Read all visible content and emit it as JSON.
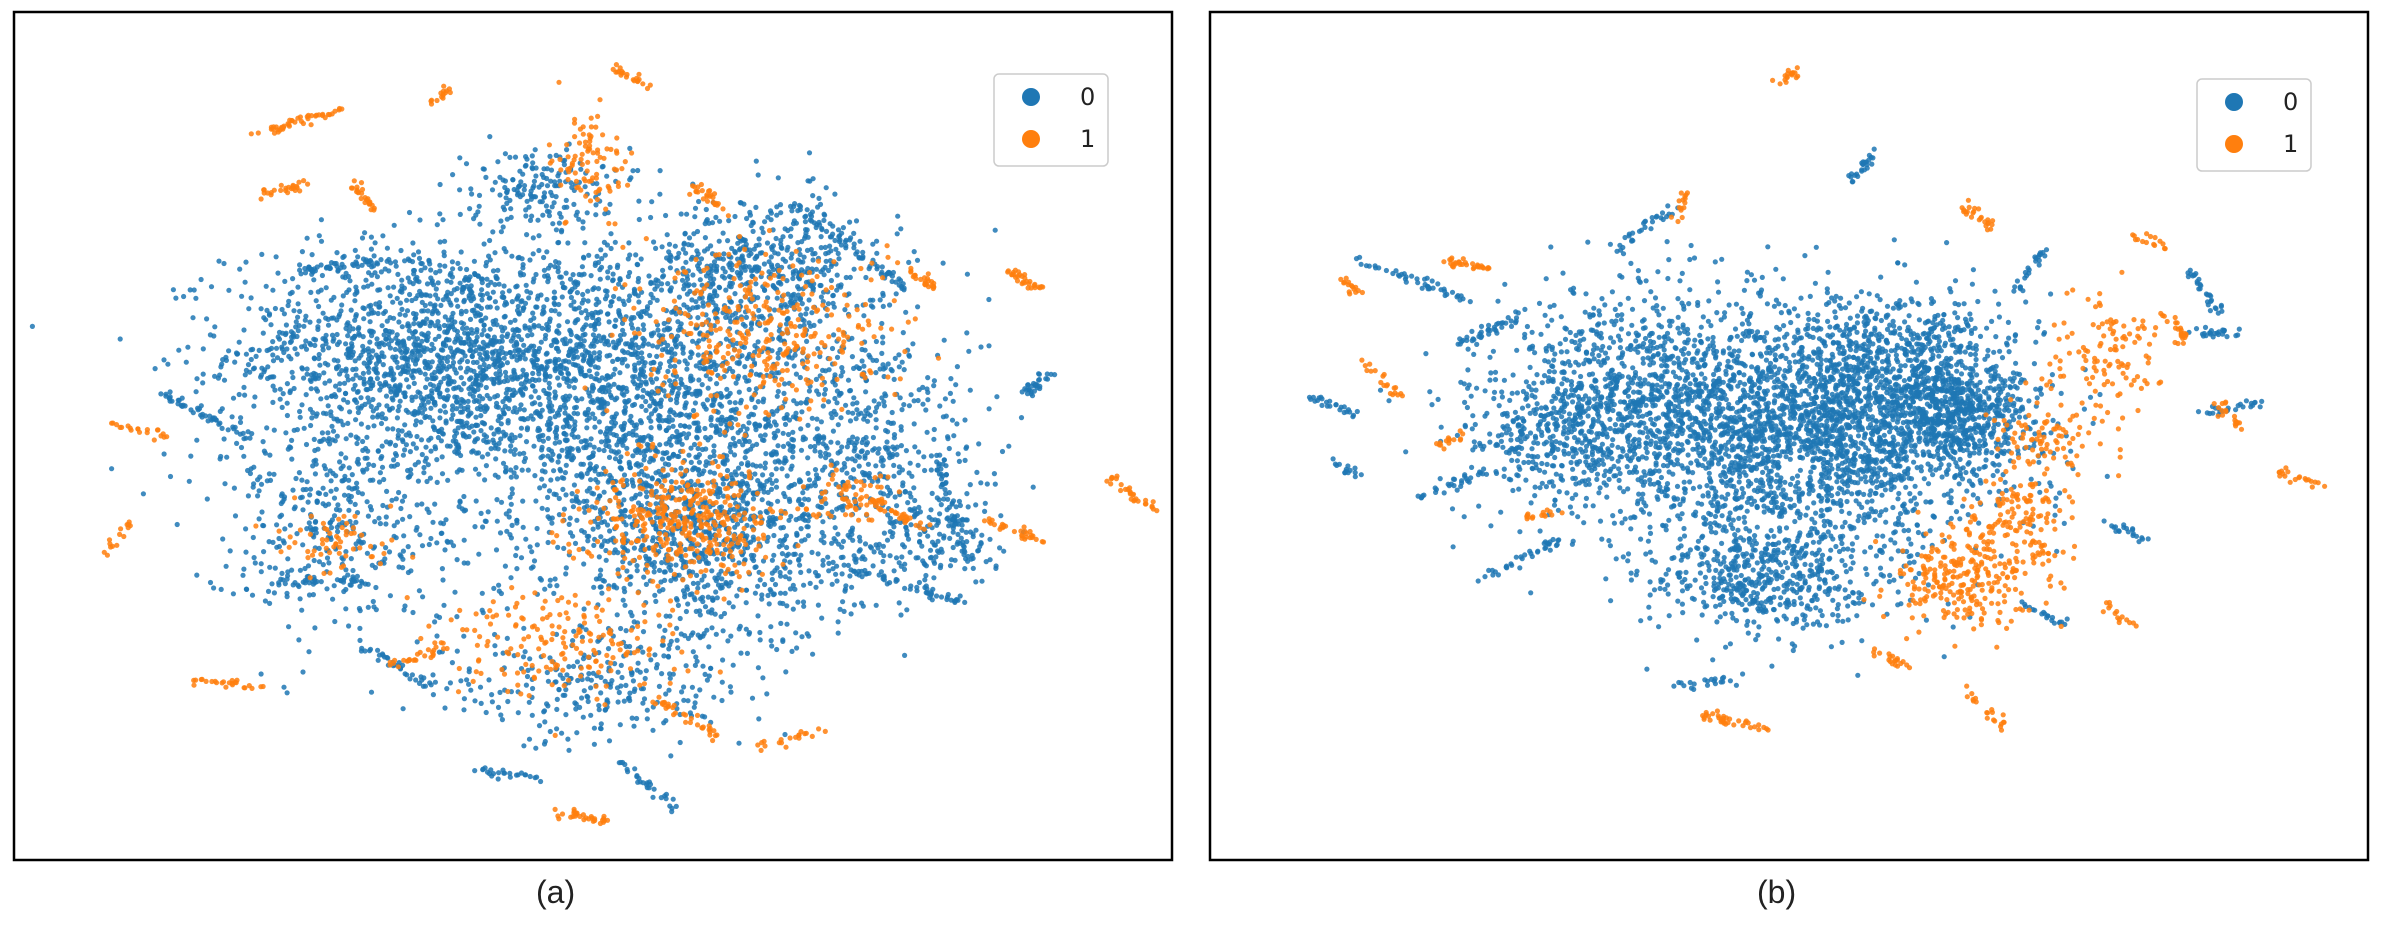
{
  "chart_data": [
    {
      "type": "scatter",
      "caption": "(a)",
      "legend": {
        "entries": [
          "0",
          "1"
        ],
        "placement": "top-right"
      },
      "colors": {
        "0": "#1f77b4",
        "1": "#ff7f0e"
      },
      "xlim": [
        -100,
        100
      ],
      "ylim": [
        -100,
        100
      ],
      "grid": false,
      "series": [
        {
          "name": "0",
          "color": "#1f77b4",
          "clusters": [
            {
              "cx": -30,
              "cy": 20,
              "sx": 28,
              "sy": 22,
              "n": 1500
            },
            {
              "cx": 5,
              "cy": 10,
              "sx": 30,
              "sy": 30,
              "n": 1700
            },
            {
              "cx": 20,
              "cy": -25,
              "sx": 22,
              "sy": 22,
              "n": 900
            },
            {
              "cx": 30,
              "cy": 40,
              "sx": 18,
              "sy": 14,
              "n": 500
            },
            {
              "cx": 45,
              "cy": 0,
              "sx": 20,
              "sy": 25,
              "n": 500
            },
            {
              "cx": -10,
              "cy": 60,
              "sx": 10,
              "sy": 8,
              "n": 160
            },
            {
              "cx": -45,
              "cy": -20,
              "sx": 20,
              "sy": 22,
              "n": 400
            },
            {
              "cx": 0,
              "cy": -60,
              "sx": 22,
              "sy": 12,
              "n": 260
            },
            {
              "cx": 60,
              "cy": -25,
              "sx": 12,
              "sy": 10,
              "n": 160
            }
          ],
          "segments": [
            {
              "x1": 35,
              "y1": 55,
              "x2": 55,
              "y2": 35,
              "n": 60
            },
            {
              "x1": 60,
              "y1": -5,
              "x2": 65,
              "y2": -30,
              "n": 55
            },
            {
              "x1": 40,
              "y1": -30,
              "x2": 65,
              "y2": -40,
              "n": 55
            },
            {
              "x1": -50,
              "y1": 40,
              "x2": -35,
              "y2": 42,
              "n": 45
            },
            {
              "x1": -75,
              "y1": 10,
              "x2": -60,
              "y2": 0,
              "n": 45
            },
            {
              "x1": 75,
              "y1": 10,
              "x2": 80,
              "y2": 15,
              "n": 30
            },
            {
              "x1": -40,
              "y1": -50,
              "x2": -28,
              "y2": -60,
              "n": 35
            },
            {
              "x1": -55,
              "y1": -35,
              "x2": -40,
              "y2": -35,
              "n": 35
            },
            {
              "x1": 5,
              "y1": -78,
              "x2": 15,
              "y2": -90,
              "n": 30
            },
            {
              "x1": -20,
              "y1": -80,
              "x2": -10,
              "y2": -82,
              "n": 25
            }
          ]
        },
        {
          "name": "1",
          "color": "#ff7f0e",
          "clusters": [
            {
              "cx": 15,
              "cy": -20,
              "sx": 14,
              "sy": 12,
              "n": 380
            },
            {
              "cx": 30,
              "cy": 25,
              "sx": 18,
              "sy": 16,
              "n": 330
            },
            {
              "cx": -5,
              "cy": -50,
              "sx": 18,
              "sy": 12,
              "n": 180
            },
            {
              "cx": 0,
              "cy": 65,
              "sx": 6,
              "sy": 10,
              "n": 90
            },
            {
              "cx": 45,
              "cy": -15,
              "sx": 6,
              "sy": 6,
              "n": 60
            },
            {
              "cx": -45,
              "cy": -25,
              "sx": 8,
              "sy": 6,
              "n": 60
            }
          ],
          "segments": [
            {
              "x1": -60,
              "y1": 72,
              "x2": -44,
              "y2": 78,
              "n": 45
            },
            {
              "x1": -58,
              "y1": 58,
              "x2": -50,
              "y2": 60,
              "n": 25
            },
            {
              "x1": -42,
              "y1": 60,
              "x2": -38,
              "y2": 54,
              "n": 25
            },
            {
              "x1": -28,
              "y1": 80,
              "x2": -25,
              "y2": 83,
              "n": 15
            },
            {
              "x1": 4,
              "y1": 88,
              "x2": 10,
              "y2": 84,
              "n": 22
            },
            {
              "x1": 18,
              "y1": 60,
              "x2": 22,
              "y2": 55,
              "n": 25
            },
            {
              "x1": 55,
              "y1": 40,
              "x2": 60,
              "y2": 35,
              "n": 25
            },
            {
              "x1": 72,
              "y1": 40,
              "x2": 78,
              "y2": 35,
              "n": 30
            },
            {
              "x1": 90,
              "y1": -10,
              "x2": 98,
              "y2": -18,
              "n": 30
            },
            {
              "x1": 68,
              "y1": -20,
              "x2": 78,
              "y2": -25,
              "n": 30
            },
            {
              "x1": 48,
              "y1": -15,
              "x2": 58,
              "y2": -22,
              "n": 35
            },
            {
              "x1": -85,
              "y1": -28,
              "x2": -80,
              "y2": -20,
              "n": 15
            },
            {
              "x1": -70,
              "y1": -58,
              "x2": -58,
              "y2": -60,
              "n": 25
            },
            {
              "x1": -35,
              "y1": -55,
              "x2": -25,
              "y2": -50,
              "n": 25
            },
            {
              "x1": 10,
              "y1": -62,
              "x2": 22,
              "y2": -72,
              "n": 35
            },
            {
              "x1": -6,
              "y1": -90,
              "x2": 2,
              "y2": -92,
              "n": 30
            },
            {
              "x1": 28,
              "y1": -75,
              "x2": 40,
              "y2": -70,
              "n": 20
            },
            {
              "x1": -85,
              "y1": 3,
              "x2": -75,
              "y2": 0,
              "n": 20
            }
          ]
        }
      ]
    },
    {
      "type": "scatter",
      "caption": "(b)",
      "legend": {
        "entries": [
          "0",
          "1"
        ],
        "placement": "top-right"
      },
      "colors": {
        "0": "#1f77b4",
        "1": "#ff7f0e"
      },
      "xlim": [
        -100,
        100
      ],
      "ylim": [
        -100,
        100
      ],
      "grid": false,
      "series": [
        {
          "name": "0",
          "color": "#1f77b4",
          "clusters": [
            {
              "cx": 5,
              "cy": 0,
              "sx": 28,
              "sy": 24,
              "n": 2200
            },
            {
              "cx": -25,
              "cy": 10,
              "sx": 22,
              "sy": 22,
              "n": 900
            },
            {
              "cx": 20,
              "cy": 15,
              "sx": 18,
              "sy": 16,
              "n": 700
            },
            {
              "cx": -5,
              "cy": -35,
              "sx": 18,
              "sy": 12,
              "n": 500
            },
            {
              "cx": -40,
              "cy": 0,
              "sx": 14,
              "sy": 14,
              "n": 350
            },
            {
              "cx": 30,
              "cy": 5,
              "sx": 10,
              "sy": 10,
              "n": 400
            }
          ],
          "segments": [
            {
              "x1": -75,
              "y1": 42,
              "x2": -55,
              "y2": 32,
              "n": 45
            },
            {
              "x1": -58,
              "y1": 22,
              "x2": -48,
              "y2": 28,
              "n": 35
            },
            {
              "x1": 70,
              "y1": 40,
              "x2": 75,
              "y2": 30,
              "n": 30
            },
            {
              "x1": 70,
              "y1": 25,
              "x2": 78,
              "y2": 25,
              "n": 25
            },
            {
              "x1": 72,
              "y1": 5,
              "x2": 82,
              "y2": 8,
              "n": 25
            },
            {
              "x1": -85,
              "y1": 10,
              "x2": -75,
              "y2": 5,
              "n": 25
            },
            {
              "x1": -65,
              "y1": -15,
              "x2": -52,
              "y2": -8,
              "n": 30
            },
            {
              "x1": -55,
              "y1": -35,
              "x2": -40,
              "y2": -25,
              "n": 35
            },
            {
              "x1": -30,
              "y1": 45,
              "x2": -20,
              "y2": 55,
              "n": 30
            },
            {
              "x1": 10,
              "y1": 60,
              "x2": 15,
              "y2": 68,
              "n": 25
            },
            {
              "x1": 40,
              "y1": 35,
              "x2": 45,
              "y2": 45,
              "n": 25
            },
            {
              "x1": 40,
              "y1": -40,
              "x2": 48,
              "y2": -45,
              "n": 20
            },
            {
              "x1": 55,
              "y1": -20,
              "x2": 62,
              "y2": -25,
              "n": 20
            },
            {
              "x1": -20,
              "y1": -60,
              "x2": -10,
              "y2": -58,
              "n": 20
            },
            {
              "x1": -80,
              "y1": -5,
              "x2": -75,
              "y2": -10,
              "n": 15
            }
          ]
        },
        {
          "name": "1",
          "color": "#ff7f0e",
          "clusters": [
            {
              "cx": 30,
              "cy": -35,
              "sx": 10,
              "sy": 10,
              "n": 250
            },
            {
              "cx": 40,
              "cy": -20,
              "sx": 8,
              "sy": 10,
              "n": 140
            },
            {
              "cx": 55,
              "cy": 20,
              "sx": 8,
              "sy": 10,
              "n": 110
            },
            {
              "cx": 45,
              "cy": 0,
              "sx": 8,
              "sy": 8,
              "n": 90
            }
          ],
          "segments": [
            {
              "x1": -60,
              "y1": 42,
              "x2": -52,
              "y2": 40,
              "n": 30
            },
            {
              "x1": -78,
              "y1": 38,
              "x2": -75,
              "y2": 34,
              "n": 15
            },
            {
              "x1": -75,
              "y1": 18,
              "x2": -68,
              "y2": 10,
              "n": 20
            },
            {
              "x1": -62,
              "y1": -3,
              "x2": -56,
              "y2": 1,
              "n": 15
            },
            {
              "x1": -48,
              "y1": -20,
              "x2": -40,
              "y2": -18,
              "n": 15
            },
            {
              "x1": -15,
              "y1": -67,
              "x2": -4,
              "y2": -70,
              "n": 35
            },
            {
              "x1": -20,
              "y1": 52,
              "x2": -18,
              "y2": 58,
              "n": 15
            },
            {
              "x1": -2,
              "y1": 85,
              "x2": 2,
              "y2": 87,
              "n": 18
            },
            {
              "x1": 30,
              "y1": 55,
              "x2": 36,
              "y2": 50,
              "n": 25
            },
            {
              "x1": 60,
              "y1": 48,
              "x2": 66,
              "y2": 45,
              "n": 15
            },
            {
              "x1": 65,
              "y1": 30,
              "x2": 70,
              "y2": 22,
              "n": 20
            },
            {
              "x1": 75,
              "y1": 8,
              "x2": 80,
              "y2": 0,
              "n": 20
            },
            {
              "x1": 85,
              "y1": -8,
              "x2": 92,
              "y2": -12,
              "n": 20
            },
            {
              "x1": 30,
              "y1": -60,
              "x2": 38,
              "y2": -70,
              "n": 20
            },
            {
              "x1": 15,
              "y1": -50,
              "x2": 20,
              "y2": -55,
              "n": 20
            },
            {
              "x1": 55,
              "y1": -40,
              "x2": 60,
              "y2": -45,
              "n": 15
            }
          ]
        }
      ]
    }
  ]
}
